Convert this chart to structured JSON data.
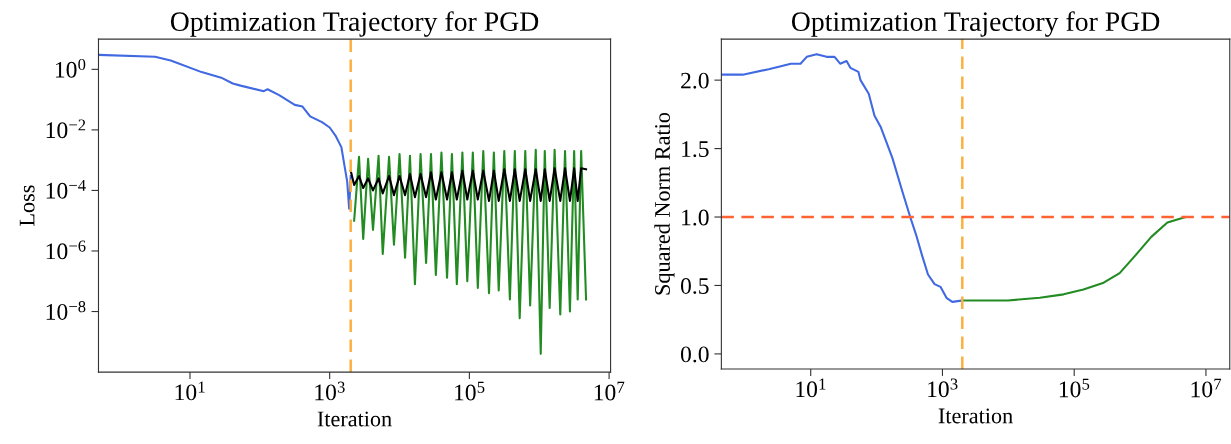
{
  "chart_data": [
    {
      "type": "line",
      "title": "Optimization Trajectory for PGD",
      "xlabel": "Iteration",
      "ylabel": "Loss",
      "log": "xy",
      "xlim": [
        0.49,
        10500000.0
      ],
      "ylim": [
        1e-10,
        10
      ],
      "xticks": [
        {
          "value": 10,
          "label": "10$^{1}$"
        },
        {
          "value": 1000,
          "label": "10$^{3}$"
        },
        {
          "value": 100000,
          "label": "10$^{5}$"
        },
        {
          "value": 10000000,
          "label": "10$^{7}$"
        }
      ],
      "yticks": [
        {
          "value": 1,
          "label": "10$^{0}$"
        },
        {
          "value": 0.01,
          "label": "10$^{−2}$"
        },
        {
          "value": 0.0001,
          "label": "10$^{−4}$"
        },
        {
          "value": 1e-06,
          "label": "10$^{−6}$"
        },
        {
          "value": 1e-08,
          "label": "10$^{−8}$"
        }
      ],
      "grid": false,
      "legend": false,
      "series": [
        {
          "color": "#4169e1",
          "x": [
            0.49,
            3.16,
            5.3,
            14.7,
            28,
            41,
            53,
            114,
            129,
            189,
            316,
            408,
            525,
            776,
            1000,
            1210,
            1470,
            1670,
            1780,
            1900,
            2000
          ],
          "values": [
            3.0,
            2.6,
            1.96,
            0.81,
            0.53,
            0.34,
            0.29,
            0.19,
            0.22,
            0.14,
            0.067,
            0.059,
            0.028,
            0.018,
            0.012,
            0.0065,
            0.0027,
            0.00047,
            0.0002,
            2.5e-05,
            0.0003
          ]
        },
        {
          "color": "#228b22",
          "x": [
            2240,
            2630,
            3020,
            3550,
            4170,
            5010,
            5750,
            7080,
            8320,
            10000,
            12000,
            14100,
            16600,
            20000,
            24000,
            28200,
            33100,
            39800,
            47900,
            56200,
            66100,
            79400,
            93300,
            112000,
            132000,
            158000,
            191000,
            224000,
            263000,
            316000,
            380000,
            447000,
            525000,
            631000,
            741000,
            891000,
            1050000,
            1200000,
            1410000,
            1660000,
            2000000,
            2340000,
            2750000,
            3160000,
            3550000,
            3980000,
            4680000
          ],
          "values": [
            1e-05,
            0.0013,
            2.5e-06,
            0.0011,
            5e-06,
            0.0014,
            8e-07,
            0.0013,
            1.6e-06,
            0.0016,
            6e-07,
            0.0014,
            8e-08,
            0.0016,
            4e-07,
            0.0016,
            1.6e-07,
            0.0018,
            1.3e-07,
            0.0016,
            8e-08,
            0.0018,
            1e-07,
            0.0018,
            6e-08,
            0.002,
            4e-08,
            0.0018,
            5e-08,
            0.002,
            2.5e-08,
            0.002,
            6e-09,
            0.002,
            1.6e-08,
            0.0022,
            4e-10,
            0.002,
            1.3e-08,
            0.0022,
            8e-09,
            0.002,
            1e-08,
            0.002,
            2.5e-08,
            0.002,
            2.5e-08
          ]
        },
        {
          "color": "#000000",
          "x": [
            2000,
            2240,
            2630,
            3020,
            3550,
            4170,
            5010,
            5750,
            7080,
            8320,
            10000,
            12000,
            14100,
            16600,
            20000,
            24000,
            28200,
            33100,
            39800,
            47900,
            56200,
            66100,
            79400,
            93300,
            112000,
            132000,
            158000,
            191000,
            224000,
            263000,
            316000,
            380000,
            447000,
            525000,
            631000,
            741000,
            891000,
            1050000,
            1200000,
            1410000,
            1660000,
            2000000,
            2340000,
            2750000,
            3160000,
            3550000,
            3980000,
            4680000
          ],
          "values": [
            0.00045,
            0.00015,
            0.0003,
            0.00012,
            0.00025,
            0.0001,
            0.00025,
            8e-05,
            0.0003,
            7e-05,
            0.0003,
            7e-05,
            0.00035,
            6e-05,
            0.00035,
            6e-05,
            0.0004,
            5e-05,
            0.0004,
            5e-05,
            0.0004,
            5e-05,
            0.00045,
            5e-05,
            0.00045,
            5e-05,
            0.00045,
            4.5e-05,
            0.00045,
            4.5e-05,
            0.0005,
            4.5e-05,
            0.0005,
            4.5e-05,
            0.0005,
            4.5e-05,
            0.0005,
            4.5e-05,
            0.0005,
            4.5e-05,
            0.00054,
            4.5e-05,
            0.00054,
            4.5e-05,
            0.00054,
            4.5e-05,
            0.00054,
            0.0005
          ]
        }
      ],
      "ref_lines": [
        {
          "axis": "x",
          "value": 2000,
          "color": "#fcb040",
          "line_style": "dashed"
        }
      ]
    },
    {
      "type": "line",
      "title": "Optimization Trajectory for PGD",
      "xlabel": "Iteration",
      "ylabel": "Squared Norm Ratio",
      "log": "x",
      "xlim": [
        0.44,
        23000000.0
      ],
      "ylim": [
        -0.11,
        2.3
      ],
      "xticks": [
        {
          "value": 10,
          "label": "10$^{1}$"
        },
        {
          "value": 1000,
          "label": "10$^{3}$"
        },
        {
          "value": 100000,
          "label": "10$^{5}$"
        },
        {
          "value": 10000000,
          "label": "10$^{7}$"
        }
      ],
      "yticks": [
        {
          "value": 0,
          "label": "0.0"
        },
        {
          "value": 0.5,
          "label": "0.5"
        },
        {
          "value": 1,
          "label": "1.0"
        },
        {
          "value": 1.5,
          "label": "1.5"
        },
        {
          "value": 2,
          "label": "2.0"
        }
      ],
      "grid": false,
      "legend": false,
      "series": [
        {
          "color": "#4169e1",
          "x": [
            0.44,
            0.93,
            2.3,
            5,
            7,
            8.7,
            12.3,
            17.4,
            23,
            28,
            35,
            40,
            53,
            57,
            76,
            93,
            115,
            174,
            245,
            324,
            398,
            490,
            603,
            759,
            933,
            1150,
            1410,
            2000
          ],
          "values": [
            2.04,
            2.04,
            2.08,
            2.12,
            2.12,
            2.17,
            2.19,
            2.17,
            2.17,
            2.12,
            2.14,
            2.09,
            2.06,
            2.0,
            1.9,
            1.74,
            1.66,
            1.43,
            1.19,
            1.0,
            0.87,
            0.72,
            0.58,
            0.51,
            0.49,
            0.41,
            0.38,
            0.39
          ]
        },
        {
          "color": "#228b22",
          "x": [
            2000,
            9800,
            30000,
            69000,
            138000,
            280000,
            490000,
            850000,
            1480000,
            2600000,
            4900000
          ],
          "values": [
            0.39,
            0.39,
            0.41,
            0.435,
            0.47,
            0.52,
            0.59,
            0.72,
            0.855,
            0.96,
            1.0
          ]
        }
      ],
      "ref_lines": [
        {
          "axis": "x",
          "value": 2000,
          "color": "#fcb040",
          "line_style": "dashed"
        },
        {
          "axis": "y",
          "value": 1.0,
          "color": "#ff6233",
          "line_style": "dashed"
        }
      ]
    }
  ]
}
